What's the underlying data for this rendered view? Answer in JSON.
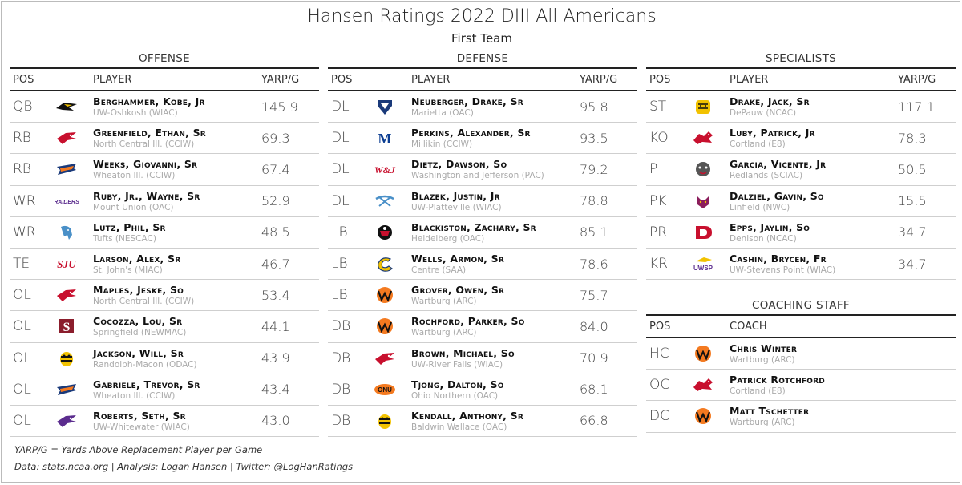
{
  "title": "Hansen Ratings 2022 DIII All Americans",
  "subtitle": "First Team",
  "headers": {
    "pos": "POS",
    "player": "PLAYER",
    "metric": "YARP/G",
    "coach": "COACH"
  },
  "offense": {
    "title": "OFFENSE",
    "rows": [
      {
        "pos": "QB",
        "name": "Berghammer, Kobe, Jr",
        "school": "UW-Oshkosh (WIAC)",
        "val": "145.9",
        "logo": "titan-logo",
        "color": "#8a5a00"
      },
      {
        "pos": "RB",
        "name": "Greenfield, Ethan, Sr",
        "school": "North Central Ill. (CCIW)",
        "val": "69.3",
        "logo": "cardinal-logo",
        "color": "#c8102e"
      },
      {
        "pos": "RB",
        "name": "Weeks, Giovanni, Sr",
        "school": "Wheaton Ill. (CCIW)",
        "val": "67.4",
        "logo": "thunder-logo",
        "color": "#f47a20"
      },
      {
        "pos": "WR",
        "name": "Ruby, Jr., Wayne, Sr",
        "school": "Mount Union (OAC)",
        "val": "52.9",
        "logo": "raiders-logo",
        "color": "#5b2c8e"
      },
      {
        "pos": "WR",
        "name": "Lutz, Phil, Sr",
        "school": "Tufts (NESCAC)",
        "val": "48.5",
        "logo": "jumbo-logo",
        "color": "#4a90c8"
      },
      {
        "pos": "TE",
        "name": "Larson, Alex, Sr",
        "school": "St. John's (MIAC)",
        "val": "46.7",
        "logo": "sju-logo",
        "color": "#c8102e"
      },
      {
        "pos": "OL",
        "name": "Maples, Jeske, So",
        "school": "North Central Ill. (CCIW)",
        "val": "53.4",
        "logo": "cardinal-logo",
        "color": "#c8102e"
      },
      {
        "pos": "OL",
        "name": "Cocozza, Lou, Sr",
        "school": "Springfield (NEWMAC)",
        "val": "44.1",
        "logo": "s-logo",
        "color": "#8b1d2c"
      },
      {
        "pos": "OL",
        "name": "Jackson, Will, Sr",
        "school": "Randolph-Macon (ODAC)",
        "val": "43.9",
        "logo": "yellowjacket-logo",
        "color": "#f2c200"
      },
      {
        "pos": "OL",
        "name": "Gabriele, Trevor, Sr",
        "school": "Wheaton Ill. (CCIW)",
        "val": "43.4",
        "logo": "thunder-logo",
        "color": "#f47a20"
      },
      {
        "pos": "OL",
        "name": "Roberts, Seth, Sr",
        "school": "UW-Whitewater (WIAC)",
        "val": "43.0",
        "logo": "warhawk-logo",
        "color": "#5b2c8e"
      }
    ]
  },
  "defense": {
    "title": "DEFENSE",
    "rows": [
      {
        "pos": "DL",
        "name": "Neuberger, Drake, Sr",
        "school": "Marietta (OAC)",
        "val": "95.8",
        "logo": "pioneer-logo",
        "color": "#1a3a7a"
      },
      {
        "pos": "DL",
        "name": "Perkins, Alexander, Sr",
        "school": "Millikin (CCIW)",
        "val": "93.5",
        "logo": "m-logo",
        "color": "#0b3d91"
      },
      {
        "pos": "DL",
        "name": "Dietz, Dawson, So",
        "school": "Washington and Jefferson (PAC)",
        "val": "79.2",
        "logo": "wj-logo",
        "color": "#c8102e"
      },
      {
        "pos": "DL",
        "name": "Blazek, Justin, Jr",
        "school": "UW-Platteville (WIAC)",
        "val": "78.8",
        "logo": "pickaxe-logo",
        "color": "#4a90c8"
      },
      {
        "pos": "LB",
        "name": "Blackiston, Zachary, Sr",
        "school": "Heidelberg (OAC)",
        "val": "85.1",
        "logo": "student-prince-logo",
        "color": "#c8102e"
      },
      {
        "pos": "LB",
        "name": "Wells, Armon, Sr",
        "school": "Centre (SAA)",
        "val": "78.6",
        "logo": "c-logo",
        "color": "#f2c200"
      },
      {
        "pos": "LB",
        "name": "Grover, Owen, Sr",
        "school": "Wartburg (ARC)",
        "val": "75.7",
        "logo": "w-logo",
        "color": "#f47a20"
      },
      {
        "pos": "DB",
        "name": "Rochford, Parker, So",
        "school": "Wartburg (ARC)",
        "val": "84.0",
        "logo": "w-logo",
        "color": "#f47a20"
      },
      {
        "pos": "DB",
        "name": "Brown, Michael, So",
        "school": "UW-River Falls (WIAC)",
        "val": "70.9",
        "logo": "falcon-logo",
        "color": "#c8102e"
      },
      {
        "pos": "DB",
        "name": "Tjong, Dalton, So",
        "school": "Ohio Northern (OAC)",
        "val": "68.1",
        "logo": "onu-logo",
        "color": "#f47a20"
      },
      {
        "pos": "DB",
        "name": "Kendall, Anthony, Sr",
        "school": "Baldwin Wallace (OAC)",
        "val": "66.8",
        "logo": "yellowjacket-logo",
        "color": "#f2c200"
      }
    ]
  },
  "specialists": {
    "title": "SPECIALISTS",
    "rows": [
      {
        "pos": "ST",
        "name": "Drake, Jack, Sr",
        "school": "DePauw (NCAC)",
        "val": "117.1",
        "logo": "tiger-logo",
        "color": "#f2c200"
      },
      {
        "pos": "KO",
        "name": "Luby, Patrick, Jr",
        "school": "Cortland (E8)",
        "val": "78.3",
        "logo": "dragon-logo",
        "color": "#c8102e"
      },
      {
        "pos": "P",
        "name": "Garcia, Vicente, Jr",
        "school": "Redlands (SCIAC)",
        "val": "50.5",
        "logo": "bulldog-logo",
        "color": "#555555"
      },
      {
        "pos": "PK",
        "name": "Dalziel, Gavin, So",
        "school": "Linfield (NWC)",
        "val": "15.5",
        "logo": "wildcat-logo",
        "color": "#8b1d5c"
      },
      {
        "pos": "PR",
        "name": "Epps, Jaylin, So",
        "school": "Denison (NCAC)",
        "val": "34.7",
        "logo": "d-logo",
        "color": "#c8102e"
      },
      {
        "pos": "KR",
        "name": "Cashin, Brycen, Fr",
        "school": "UW-Stevens Point (WIAC)",
        "val": "34.7",
        "logo": "uwsp-logo",
        "color": "#5b2c8e"
      }
    ]
  },
  "coaching": {
    "title": "COACHING STAFF",
    "rows": [
      {
        "pos": "HC",
        "name": "Chris Winter",
        "school": "Wartburg (ARC)",
        "logo": "w-logo",
        "color": "#f47a20"
      },
      {
        "pos": "OC",
        "name": "Patrick Rotchford",
        "school": "Cortland (E8)",
        "logo": "dragon-logo",
        "color": "#c8102e"
      },
      {
        "pos": "DC",
        "name": "Matt Tschetter",
        "school": "Wartburg (ARC)",
        "logo": "w-logo",
        "color": "#f47a20"
      }
    ]
  },
  "footnote": "YARP/G = Yards Above Replacement Player per Game",
  "credits": "Data: stats.ncaa.org | Analysis: Logan Hansen | Twitter: @LogHanRatings"
}
